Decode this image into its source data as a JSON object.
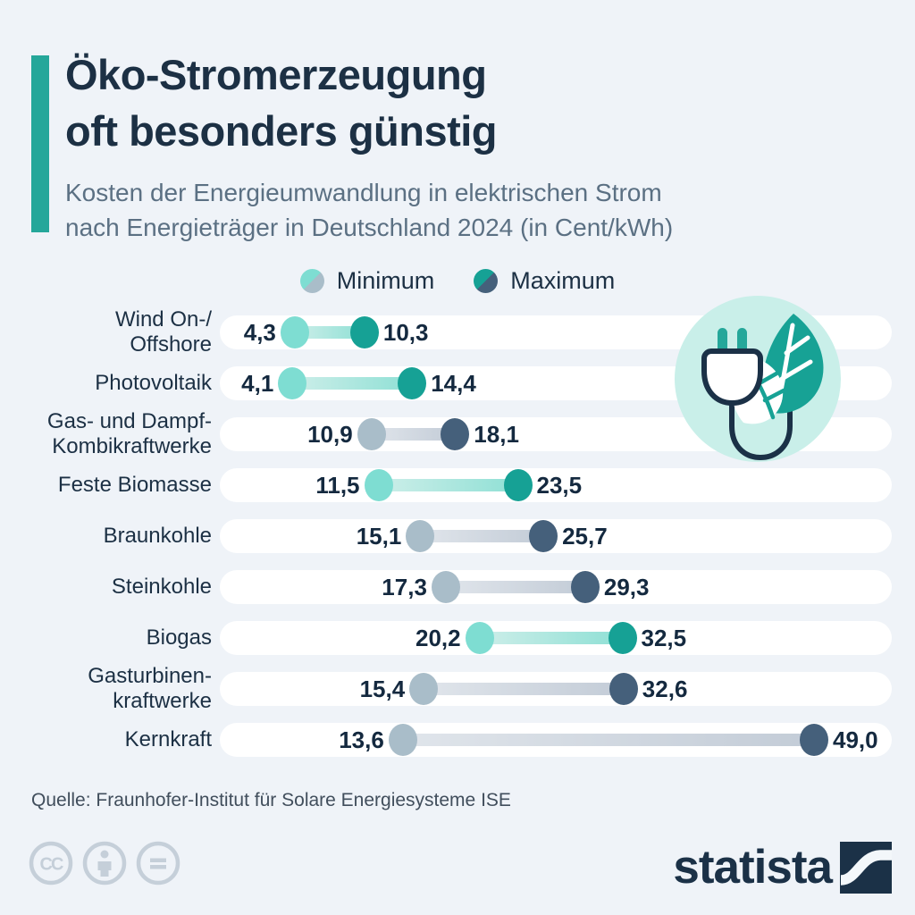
{
  "header": {
    "title_line1": "Öko-Stromerzeugung",
    "title_line2": "oft besonders günstig",
    "subtitle_line1": "Kosten der Energieumwandlung in elektrischen Strom",
    "subtitle_line2": "nach Energieträger in Deutschland 2024 (in Cent/kWh)"
  },
  "legend": {
    "min_label": "Minimum",
    "max_label": "Maximum"
  },
  "chart_data": {
    "type": "dumbbell",
    "title": "Öko-Stromerzeugung oft besonders günstig",
    "subtitle": "Kosten der Energieumwandlung in elektrischen Strom nach Energieträger in Deutschland 2024 (in Cent/kWh)",
    "unit": "Cent/kWh",
    "categories": [
      "Wind On-/Offshore",
      "Photovoltaik",
      "Gas- und Dampf-Kombikraftwerke",
      "Feste Biomasse",
      "Braunkohle",
      "Steinkohle",
      "Biogas",
      "Gasturbinenkraftwerke",
      "Kernkraft"
    ],
    "series": [
      {
        "name": "Minimum",
        "values": [
          4.3,
          4.1,
          10.9,
          11.5,
          15.1,
          17.3,
          20.2,
          15.4,
          13.6
        ]
      },
      {
        "name": "Maximum",
        "values": [
          10.3,
          14.4,
          18.1,
          23.5,
          25.7,
          29.3,
          32.5,
          32.6,
          49.0
        ]
      }
    ],
    "category_colorways": [
      "green",
      "green",
      "gray",
      "green",
      "gray",
      "gray",
      "green",
      "gray",
      "gray"
    ],
    "value_axis_range": [
      0,
      52
    ],
    "grid": false,
    "legend_position": "top",
    "source": "Quelle: Fraunhofer-Institut für Solare Energiesysteme ISE"
  },
  "rows": [
    {
      "label_lines": [
        "Wind On-/",
        "Offshore"
      ],
      "min": 4.3,
      "max": 10.3,
      "min_display": "4,3",
      "max_display": "10,3",
      "colorway": "green"
    },
    {
      "label_lines": [
        "Photovoltaik"
      ],
      "min": 4.1,
      "max": 14.4,
      "min_display": "4,1",
      "max_display": "14,4",
      "colorway": "green"
    },
    {
      "label_lines": [
        "Gas- und Dampf-",
        "Kombikraftwerke"
      ],
      "min": 10.9,
      "max": 18.1,
      "min_display": "10,9",
      "max_display": "18,1",
      "colorway": "gray"
    },
    {
      "label_lines": [
        "Feste Biomasse"
      ],
      "min": 11.5,
      "max": 23.5,
      "min_display": "11,5",
      "max_display": "23,5",
      "colorway": "green"
    },
    {
      "label_lines": [
        "Braunkohle"
      ],
      "min": 15.1,
      "max": 25.7,
      "min_display": "15,1",
      "max_display": "25,7",
      "colorway": "gray"
    },
    {
      "label_lines": [
        "Steinkohle"
      ],
      "min": 17.3,
      "max": 29.3,
      "min_display": "17,3",
      "max_display": "29,3",
      "colorway": "gray"
    },
    {
      "label_lines": [
        "Biogas"
      ],
      "min": 20.2,
      "max": 32.5,
      "min_display": "20,2",
      "max_display": "32,5",
      "colorway": "green"
    },
    {
      "label_lines": [
        "Gasturbinen-",
        "kraftwerke"
      ],
      "min": 15.4,
      "max": 32.6,
      "min_display": "15,4",
      "max_display": "32,6",
      "colorway": "gray"
    },
    {
      "label_lines": [
        "Kernkraft"
      ],
      "min": 13.6,
      "max": 49.0,
      "min_display": "13,6",
      "max_display": "49,0",
      "colorway": "gray"
    }
  ],
  "colors": {
    "background": "#eff3f8",
    "accent_teal": "#25a79a",
    "title_navy": "#1c3044",
    "subtitle_gray": "#5b7083",
    "value_navy": "#14293f",
    "pill_white": "#ffffff",
    "source_gray": "#414e5c",
    "cc_gray": "#c5cfd9",
    "logo_navy": "#1b3147",
    "illustration_circle": "#c9efe9",
    "illustration_leaf": "#17a295",
    "green": {
      "min": "#7eddd2",
      "max": "#16a195",
      "bar_from": "#cdeee9",
      "bar_to": "#8fe0d5"
    },
    "gray": {
      "min": "#a9bdc9",
      "max": "#45607b",
      "bar_from": "#e0e5eb",
      "bar_to": "#c3ccd7"
    }
  },
  "source": "Quelle: Fraunhofer-Institut für Solare Energiesysteme ISE",
  "footer": {
    "brand": "statista",
    "cc_icons": [
      "cc",
      "attribution-person",
      "no-derivatives-equals"
    ]
  }
}
